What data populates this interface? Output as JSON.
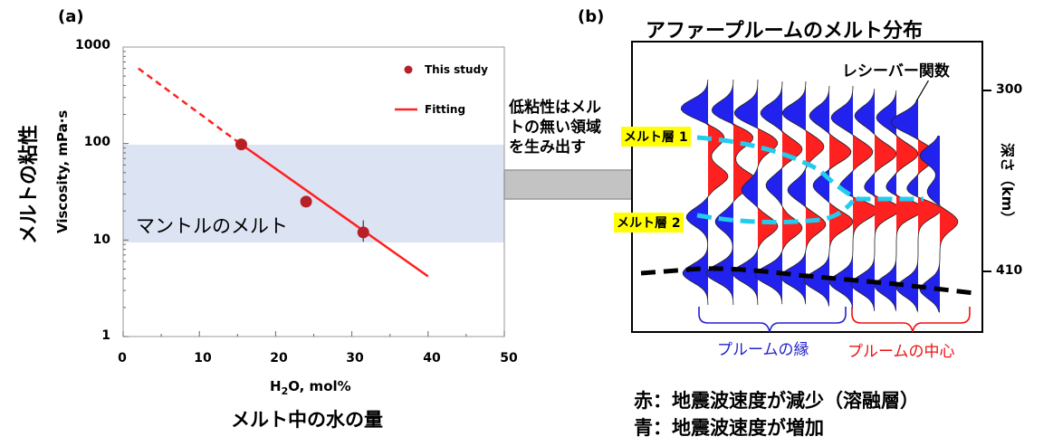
{
  "panel_a": {
    "label": "(a)",
    "ylabel_jp": "メルトの粘性",
    "ylabel_en": "Viscosity, mPa·s",
    "xlabel_en_pre": "H",
    "xlabel_en_sub": "2",
    "xlabel_en_post": "O, mol%",
    "xlabel_jp": "メルト中の水の量",
    "band_label": "マントルのメルト",
    "legend_points": "This study",
    "legend_fit": "Fitting",
    "yticks": [
      "1000",
      "100",
      "10",
      "1"
    ],
    "xticks": [
      "0",
      "10",
      "20",
      "30",
      "40",
      "50"
    ]
  },
  "arrow_note": {
    "lines": [
      "低粘性はメル",
      "トの無い領域",
      "を生み出す"
    ]
  },
  "panel_b": {
    "label": "(b)",
    "title": "アファープルームのメルト分布",
    "receiver_label": "レシーバー関数",
    "melt_layer_1": "メルト層 1",
    "melt_layer_2": "メルト層 2",
    "depth_label": "深さ（km）",
    "depth_ticks": [
      "300",
      "410"
    ],
    "edge_label": "プルームの縁",
    "center_label": "プルームの中心",
    "note_red": "赤：地震波速度が減少（溶融層）",
    "note_blue": "青：地震波速度が増加",
    "colors": {
      "red": "#ff2020",
      "blue": "#2222ee",
      "cyan": "#22ccee",
      "edge_text": "#2222cc",
      "center_text": "#ee1111"
    }
  },
  "chart_data": {
    "type": "scatter",
    "xlabel": "H2O, mol%",
    "ylabel": "Viscosity, mPa·s",
    "xlim": [
      0,
      50
    ],
    "ylim": [
      1,
      1000
    ],
    "yscale": "log",
    "band": {
      "ymin": 10,
      "ymax": 100,
      "label": "マントルのメルト"
    },
    "series": [
      {
        "name": "This study",
        "x": [
          15.5,
          24,
          31.5
        ],
        "y": [
          98,
          25,
          12
        ],
        "yerr": [
          0,
          0,
          4
        ]
      },
      {
        "name": "Fitting",
        "line": [
          [
            15.5,
            98
          ],
          [
            40,
            4.2
          ]
        ],
        "extrapolated": [
          [
            2,
            600
          ],
          [
            15.5,
            98
          ]
        ]
      }
    ],
    "legend": "top-right"
  }
}
